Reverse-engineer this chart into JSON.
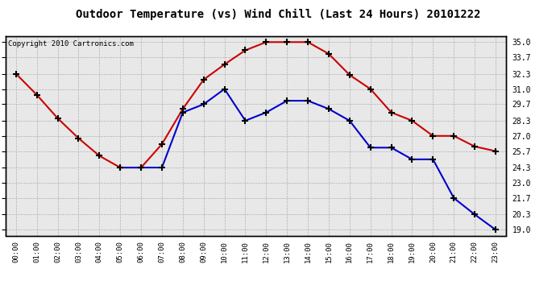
{
  "title": "Outdoor Temperature (vs) Wind Chill (Last 24 Hours) 20101222",
  "copyright_text": "Copyright 2010 Cartronics.com",
  "hours": [
    0,
    1,
    2,
    3,
    4,
    5,
    6,
    7,
    8,
    9,
    10,
    11,
    12,
    13,
    14,
    15,
    16,
    17,
    18,
    19,
    20,
    21,
    22,
    23
  ],
  "hour_labels": [
    "00:00",
    "01:00",
    "02:00",
    "03:00",
    "04:00",
    "05:00",
    "06:00",
    "07:00",
    "08:00",
    "09:00",
    "10:00",
    "11:00",
    "12:00",
    "13:00",
    "14:00",
    "15:00",
    "16:00",
    "17:00",
    "18:00",
    "19:00",
    "20:00",
    "21:00",
    "22:00",
    "23:00"
  ],
  "temp_red": [
    32.3,
    30.5,
    28.5,
    26.8,
    25.3,
    24.3,
    24.3,
    26.3,
    29.3,
    31.8,
    33.1,
    34.3,
    35.0,
    35.0,
    35.0,
    34.0,
    32.2,
    31.0,
    29.0,
    28.3,
    27.0,
    27.0,
    26.1,
    25.7
  ],
  "wind_chill_blue": [
    null,
    null,
    null,
    null,
    null,
    24.3,
    24.3,
    24.3,
    29.0,
    29.7,
    31.0,
    28.3,
    29.0,
    30.0,
    30.0,
    29.3,
    28.3,
    26.0,
    26.0,
    25.0,
    25.0,
    21.7,
    20.3,
    19.0
  ],
  "ylim_min": 18.5,
  "ylim_max": 35.5,
  "yticks": [
    19.0,
    20.3,
    21.7,
    23.0,
    24.3,
    25.7,
    27.0,
    28.3,
    29.7,
    31.0,
    32.3,
    33.7,
    35.0
  ],
  "red_color": "#cc0000",
  "blue_color": "#0000cc",
  "background_color": "#ffffff",
  "plot_bg_color": "#e8e8e8",
  "grid_color": "#b0b0b0",
  "title_fontsize": 10,
  "copyright_fontsize": 6.5
}
